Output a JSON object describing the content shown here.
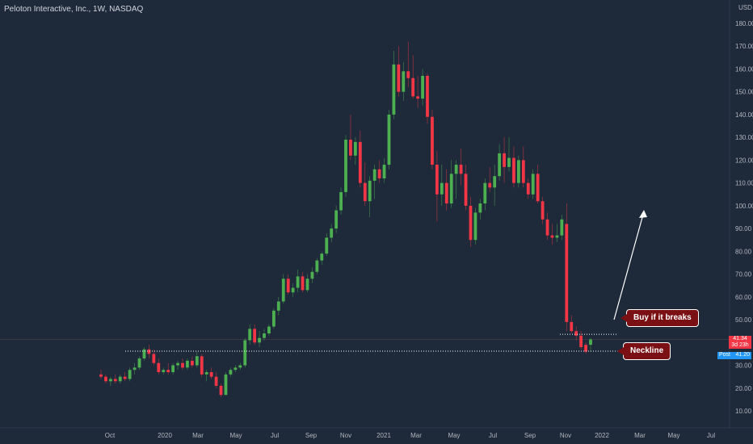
{
  "title": "Peloton Interactive, Inc., 1W, NASDAQ",
  "currency_label": "USD",
  "callouts": {
    "buy": "Buy if it breaks",
    "neckline": "Neckline"
  },
  "price_tags": {
    "last": {
      "value": "41.34",
      "sub": "3d 23h",
      "color": "#f23645"
    },
    "post": {
      "label": "Post",
      "value": "41.20",
      "color": "#2196f3"
    }
  },
  "colors": {
    "up": "#4caf50",
    "down": "#f23645",
    "post": "#2196f3",
    "annotation": "#ffffff"
  },
  "chart_data": {
    "type": "candlestick",
    "ylim": [
      0,
      185
    ],
    "y_ticks": [
      10,
      20,
      30,
      40,
      50,
      60,
      70,
      80,
      90,
      100,
      110,
      120,
      130,
      140,
      150,
      160,
      170,
      180
    ],
    "x_labels": [
      "Oct",
      "2020",
      "Mar",
      "May",
      "Jul",
      "Sep",
      "Nov",
      "2021",
      "Mar",
      "May",
      "Jul",
      "Sep",
      "Nov",
      "2022",
      "Mar",
      "May",
      "Jul"
    ],
    "neckline": 35.5,
    "buy_level": 45,
    "series": [
      {
        "o": 26,
        "h": 28,
        "l": 24,
        "c": 25
      },
      {
        "o": 25,
        "h": 26,
        "l": 22,
        "c": 23
      },
      {
        "o": 23,
        "h": 25,
        "l": 21,
        "c": 24
      },
      {
        "o": 24,
        "h": 26,
        "l": 22,
        "c": 23
      },
      {
        "o": 23,
        "h": 26,
        "l": 22,
        "c": 25
      },
      {
        "o": 25,
        "h": 27,
        "l": 23,
        "c": 24
      },
      {
        "o": 24,
        "h": 29,
        "l": 23,
        "c": 28
      },
      {
        "o": 28,
        "h": 31,
        "l": 26,
        "c": 29
      },
      {
        "o": 29,
        "h": 34,
        "l": 28,
        "c": 33
      },
      {
        "o": 33,
        "h": 38,
        "l": 32,
        "c": 37
      },
      {
        "o": 37,
        "h": 39,
        "l": 33,
        "c": 35
      },
      {
        "o": 35,
        "h": 37,
        "l": 30,
        "c": 31
      },
      {
        "o": 31,
        "h": 33,
        "l": 26,
        "c": 27
      },
      {
        "o": 27,
        "h": 29,
        "l": 26,
        "c": 28
      },
      {
        "o": 28,
        "h": 31,
        "l": 26,
        "c": 27
      },
      {
        "o": 27,
        "h": 31,
        "l": 26,
        "c": 30
      },
      {
        "o": 30,
        "h": 32,
        "l": 28,
        "c": 31
      },
      {
        "o": 31,
        "h": 33,
        "l": 28,
        "c": 29
      },
      {
        "o": 29,
        "h": 33,
        "l": 28,
        "c": 32
      },
      {
        "o": 32,
        "h": 34,
        "l": 29,
        "c": 30
      },
      {
        "o": 30,
        "h": 36,
        "l": 29,
        "c": 34
      },
      {
        "o": 34,
        "h": 35,
        "l": 25,
        "c": 26
      },
      {
        "o": 26,
        "h": 28,
        "l": 23,
        "c": 27
      },
      {
        "o": 27,
        "h": 29,
        "l": 24,
        "c": 25
      },
      {
        "o": 25,
        "h": 27,
        "l": 20,
        "c": 21
      },
      {
        "o": 21,
        "h": 22,
        "l": 16,
        "c": 17
      },
      {
        "o": 17,
        "h": 27,
        "l": 17,
        "c": 26
      },
      {
        "o": 26,
        "h": 29,
        "l": 25,
        "c": 28
      },
      {
        "o": 28,
        "h": 30,
        "l": 27,
        "c": 29
      },
      {
        "o": 29,
        "h": 31,
        "l": 28,
        "c": 30
      },
      {
        "o": 30,
        "h": 42,
        "l": 29,
        "c": 41
      },
      {
        "o": 41,
        "h": 48,
        "l": 39,
        "c": 46
      },
      {
        "o": 46,
        "h": 48,
        "l": 39,
        "c": 40
      },
      {
        "o": 40,
        "h": 45,
        "l": 38,
        "c": 42
      },
      {
        "o": 42,
        "h": 46,
        "l": 41,
        "c": 44
      },
      {
        "o": 44,
        "h": 48,
        "l": 43,
        "c": 47
      },
      {
        "o": 47,
        "h": 55,
        "l": 46,
        "c": 54
      },
      {
        "o": 54,
        "h": 60,
        "l": 52,
        "c": 58
      },
      {
        "o": 58,
        "h": 70,
        "l": 57,
        "c": 68
      },
      {
        "o": 68,
        "h": 70,
        "l": 61,
        "c": 62
      },
      {
        "o": 62,
        "h": 66,
        "l": 60,
        "c": 64
      },
      {
        "o": 64,
        "h": 72,
        "l": 62,
        "c": 69
      },
      {
        "o": 69,
        "h": 71,
        "l": 62,
        "c": 63
      },
      {
        "o": 63,
        "h": 70,
        "l": 62,
        "c": 68
      },
      {
        "o": 68,
        "h": 73,
        "l": 66,
        "c": 71
      },
      {
        "o": 71,
        "h": 77,
        "l": 70,
        "c": 76
      },
      {
        "o": 76,
        "h": 80,
        "l": 74,
        "c": 79
      },
      {
        "o": 79,
        "h": 88,
        "l": 78,
        "c": 86
      },
      {
        "o": 86,
        "h": 92,
        "l": 84,
        "c": 90
      },
      {
        "o": 90,
        "h": 100,
        "l": 88,
        "c": 98
      },
      {
        "o": 98,
        "h": 108,
        "l": 96,
        "c": 106
      },
      {
        "o": 106,
        "h": 131,
        "l": 104,
        "c": 129
      },
      {
        "o": 129,
        "h": 140,
        "l": 120,
        "c": 122
      },
      {
        "o": 122,
        "h": 130,
        "l": 118,
        "c": 128
      },
      {
        "o": 128,
        "h": 133,
        "l": 108,
        "c": 110
      },
      {
        "o": 110,
        "h": 119,
        "l": 100,
        "c": 102
      },
      {
        "o": 102,
        "h": 113,
        "l": 95,
        "c": 111
      },
      {
        "o": 111,
        "h": 118,
        "l": 103,
        "c": 116
      },
      {
        "o": 116,
        "h": 120,
        "l": 110,
        "c": 112
      },
      {
        "o": 112,
        "h": 121,
        "l": 110,
        "c": 118
      },
      {
        "o": 118,
        "h": 142,
        "l": 116,
        "c": 140
      },
      {
        "o": 140,
        "h": 168,
        "l": 138,
        "c": 162
      },
      {
        "o": 162,
        "h": 170,
        "l": 148,
        "c": 150
      },
      {
        "o": 150,
        "h": 163,
        "l": 146,
        "c": 159
      },
      {
        "o": 159,
        "h": 172,
        "l": 152,
        "c": 156
      },
      {
        "o": 156,
        "h": 166,
        "l": 147,
        "c": 148
      },
      {
        "o": 148,
        "h": 157,
        "l": 143,
        "c": 147
      },
      {
        "o": 147,
        "h": 160,
        "l": 144,
        "c": 157
      },
      {
        "o": 157,
        "h": 158,
        "l": 136,
        "c": 139
      },
      {
        "o": 139,
        "h": 142,
        "l": 116,
        "c": 118
      },
      {
        "o": 118,
        "h": 124,
        "l": 93,
        "c": 105
      },
      {
        "o": 105,
        "h": 118,
        "l": 100,
        "c": 110
      },
      {
        "o": 110,
        "h": 116,
        "l": 98,
        "c": 101
      },
      {
        "o": 101,
        "h": 120,
        "l": 99,
        "c": 114
      },
      {
        "o": 114,
        "h": 120,
        "l": 103,
        "c": 118
      },
      {
        "o": 118,
        "h": 125,
        "l": 109,
        "c": 114
      },
      {
        "o": 114,
        "h": 118,
        "l": 98,
        "c": 100
      },
      {
        "o": 100,
        "h": 104,
        "l": 82,
        "c": 85
      },
      {
        "o": 85,
        "h": 99,
        "l": 83,
        "c": 97
      },
      {
        "o": 97,
        "h": 103,
        "l": 94,
        "c": 101
      },
      {
        "o": 101,
        "h": 112,
        "l": 98,
        "c": 110
      },
      {
        "o": 110,
        "h": 117,
        "l": 106,
        "c": 108
      },
      {
        "o": 108,
        "h": 118,
        "l": 100,
        "c": 113
      },
      {
        "o": 113,
        "h": 127,
        "l": 111,
        "c": 123
      },
      {
        "o": 123,
        "h": 130,
        "l": 110,
        "c": 117
      },
      {
        "o": 117,
        "h": 130,
        "l": 115,
        "c": 121
      },
      {
        "o": 121,
        "h": 126,
        "l": 108,
        "c": 110
      },
      {
        "o": 110,
        "h": 122,
        "l": 108,
        "c": 120
      },
      {
        "o": 120,
        "h": 126,
        "l": 108,
        "c": 110
      },
      {
        "o": 110,
        "h": 112,
        "l": 103,
        "c": 105
      },
      {
        "o": 105,
        "h": 116,
        "l": 103,
        "c": 114
      },
      {
        "o": 114,
        "h": 118,
        "l": 101,
        "c": 102
      },
      {
        "o": 102,
        "h": 104,
        "l": 92,
        "c": 94
      },
      {
        "o": 94,
        "h": 97,
        "l": 85,
        "c": 87
      },
      {
        "o": 87,
        "h": 92,
        "l": 83,
        "c": 86
      },
      {
        "o": 86,
        "h": 92,
        "l": 84,
        "c": 87
      },
      {
        "o": 87,
        "h": 96,
        "l": 85,
        "c": 94
      },
      {
        "o": 92,
        "h": 101,
        "l": 45,
        "c": 49
      },
      {
        "o": 49,
        "h": 52,
        "l": 44,
        "c": 45
      },
      {
        "o": 45,
        "h": 47,
        "l": 41,
        "c": 43
      },
      {
        "o": 43,
        "h": 45,
        "l": 37,
        "c": 38
      },
      {
        "o": 39,
        "h": 40,
        "l": 35,
        "c": 36
      },
      {
        "o": 39,
        "h": 42,
        "l": 36,
        "c": 41.34
      }
    ]
  }
}
